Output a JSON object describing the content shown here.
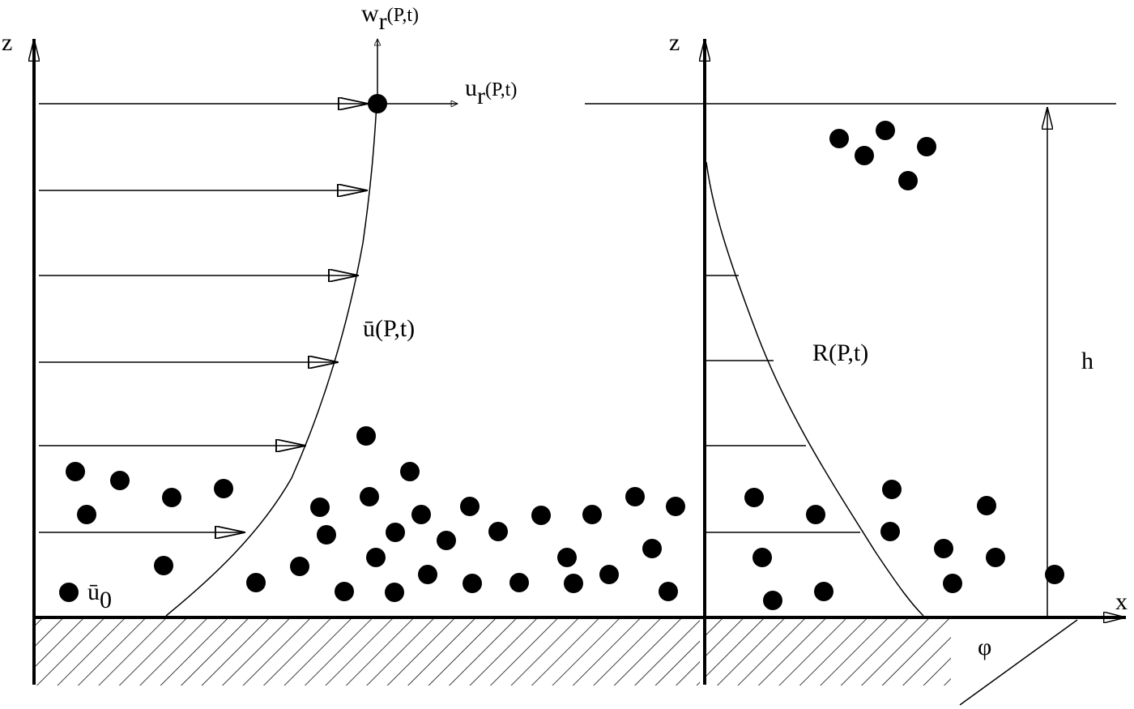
{
  "left_panel": {
    "axis_label": "z",
    "vertical_velocity": {
      "base": "w",
      "sub": "r",
      "rest": "(P,t)"
    },
    "horizontal_velocity": {
      "base": "u",
      "sub": "r",
      "rest": "(P,t)"
    },
    "profile_label": "ū(P,t)",
    "surface_velocity": {
      "base": "ū",
      "sub": "0"
    }
  },
  "right_panel": {
    "axis_label": "z",
    "profile_label": "R(P,t)",
    "height_label": "h",
    "x_label": "x",
    "angle_label": "φ"
  }
}
